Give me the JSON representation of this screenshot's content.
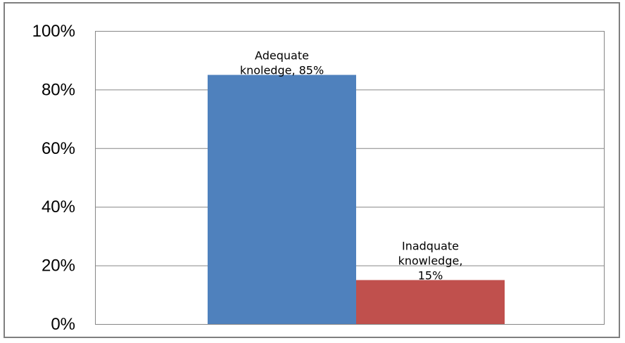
{
  "chart_data": {
    "type": "bar",
    "title": "",
    "xlabel": "",
    "ylabel": "",
    "ylim": [
      0,
      100
    ],
    "yticks": [
      0,
      20,
      40,
      60,
      80,
      100
    ],
    "ytick_labels": [
      "0%",
      "20%",
      "40%",
      "60%",
      "80%",
      "100%"
    ],
    "grid": true,
    "legend": "none",
    "series": [
      {
        "values": [
          85
        ],
        "color": "#4f81bd",
        "label_lines": [
          "Adequate",
          "knoledge, 85%"
        ]
      },
      {
        "values": [
          15
        ],
        "color": "#c0504d",
        "label_lines": [
          "Inadquate",
          "knowledge,",
          "15%"
        ]
      }
    ]
  }
}
